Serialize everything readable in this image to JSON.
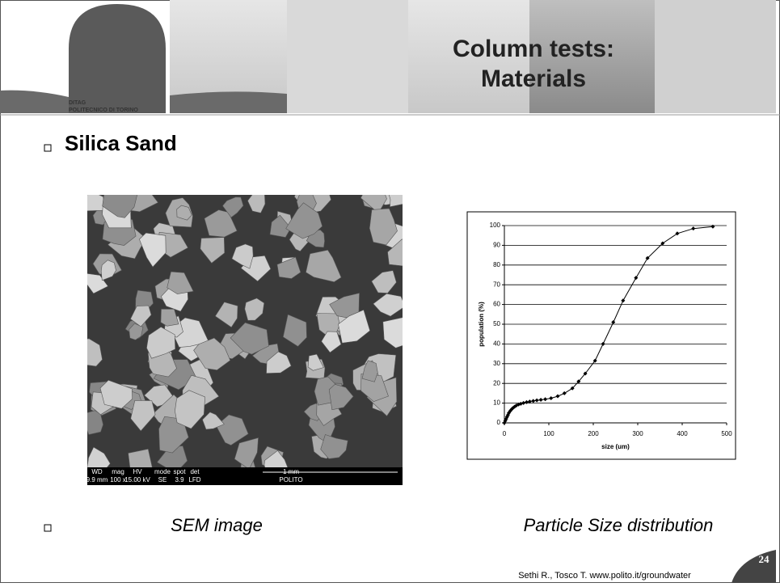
{
  "header": {
    "logo_line1": "DITAG",
    "logo_line2": "POLITECNICO DI TORINO",
    "title_lines": [
      "Column tests:",
      "Materials"
    ]
  },
  "bullets": [
    "Silica Sand"
  ],
  "sem": {
    "labels": [
      [
        "WD",
        "mag",
        "HV",
        "mode",
        "spot",
        "det",
        "1 mm"
      ],
      [
        "9.9 mm",
        "100 x",
        "15.00 kV",
        "SE",
        "3.9",
        "LFD",
        "POLITO"
      ]
    ]
  },
  "captions": [
    "SEM image",
    "Particle Size distribution"
  ],
  "footer": {
    "credit": "Sethi R., Tosco T. www.polito.it/groundwater",
    "page": "24"
  },
  "chart_data": {
    "type": "line",
    "xlabel": "size (um)",
    "ylabel": "population (%)",
    "x": [
      0,
      2,
      4,
      6,
      8,
      10,
      13,
      16,
      19,
      23,
      27,
      32,
      37,
      43,
      50,
      57,
      65,
      73,
      82,
      92,
      105,
      120,
      135,
      153,
      167,
      182,
      204,
      222,
      245,
      267,
      296,
      322,
      356,
      389,
      425,
      469
    ],
    "series": [
      {
        "color": "#000000",
        "values": [
          0,
          1,
          2,
          3,
          4,
          5,
          6,
          6.8,
          7.5,
          8.2,
          8.8,
          9.3,
          9.7,
          10.1,
          10.5,
          10.8,
          11.1,
          11.4,
          11.7,
          12,
          12.5,
          13.5,
          15,
          17.5,
          21,
          25,
          31.5,
          40,
          51,
          62,
          73.5,
          83.5,
          91,
          96,
          98.5,
          99.5
        ]
      }
    ],
    "xlim": [
      0,
      500
    ],
    "ylim": [
      0,
      100
    ],
    "xticks": [
      0,
      100,
      200,
      300,
      400,
      500
    ],
    "yticks": [
      0,
      10,
      20,
      30,
      40,
      50,
      60,
      70,
      80,
      90,
      100
    ],
    "grid": true
  }
}
